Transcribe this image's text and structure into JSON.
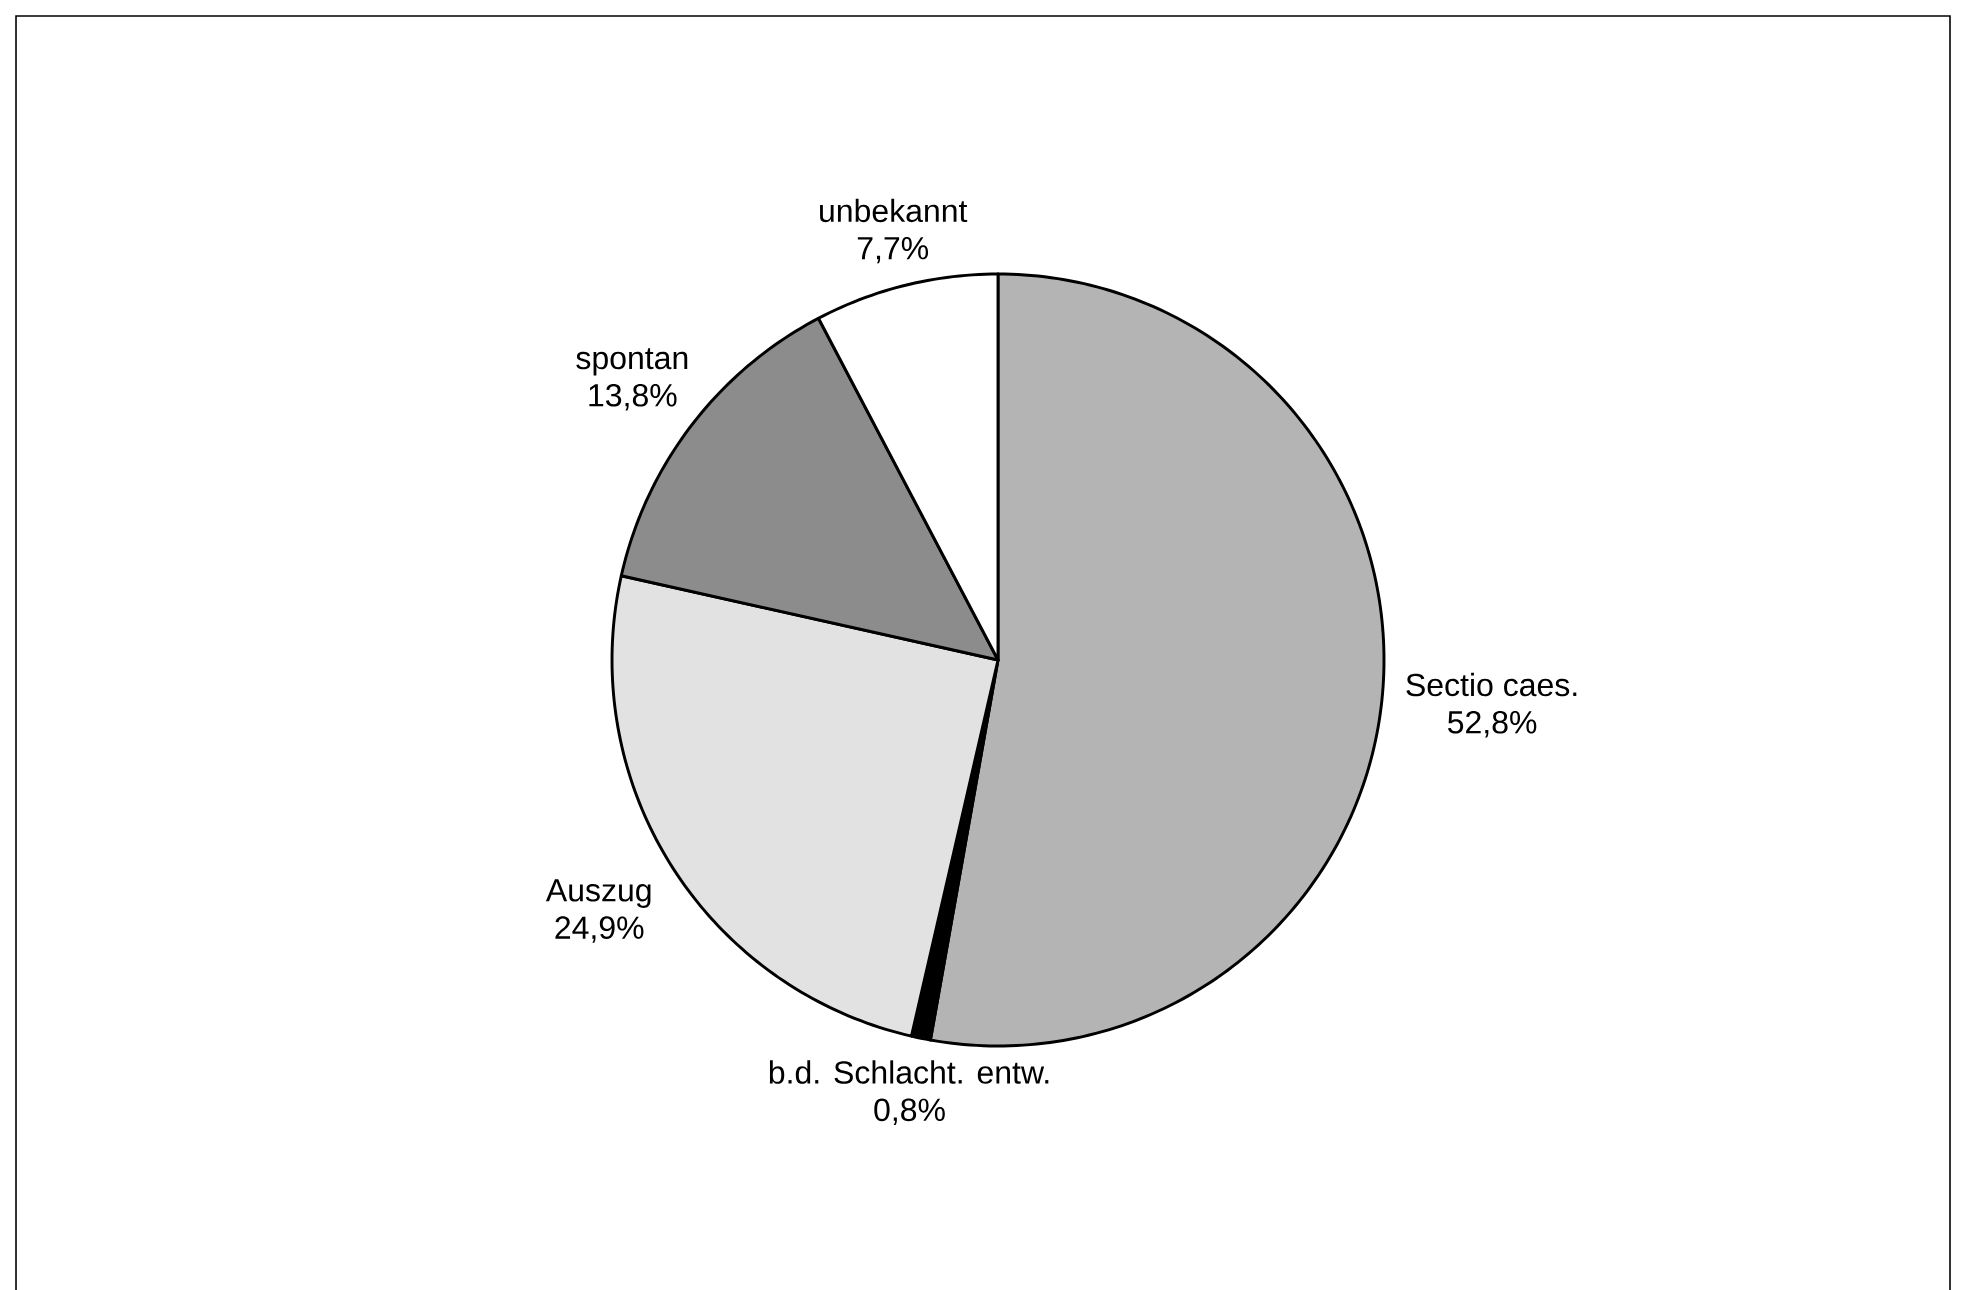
{
  "chart_data": {
    "type": "pie",
    "categories": [
      "Sectio caes.",
      "b.d. Schlacht. entw.",
      "Auszug",
      "spontan",
      "unbekannt"
    ],
    "values": [
      52.8,
      0.8,
      24.9,
      13.8,
      7.7
    ],
    "value_labels": [
      "52,8%",
      "0,8%",
      "24,9%",
      "13,8%",
      "7,7%"
    ],
    "colors": [
      "#b4b4b4",
      "#000000",
      "#e2e2e2",
      "#8c8c8c",
      "#ffffff"
    ]
  }
}
